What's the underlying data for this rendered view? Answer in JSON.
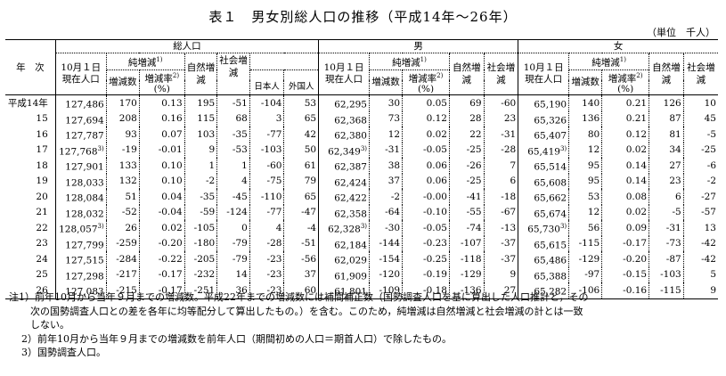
{
  "title": "表１　男女別総人口の推移（平成14年～26年）",
  "unit": "（単位　千人）",
  "header": {
    "year_col": "年　次",
    "total": "総人口",
    "male": "男",
    "female": "女",
    "pop_oct1": "10月１日現在人口",
    "net_change": "純増減",
    "net_change_note": "1)",
    "change_count": "増減数",
    "change_rate": "増減率",
    "change_rate_note": "2)",
    "change_rate_unit": "(%)",
    "natural": "自然増減",
    "social": "社会増減",
    "japanese": "日本人",
    "foreigner": "外国人"
  },
  "rows": [
    {
      "year": "平成14年",
      "t": "127,486",
      "tn": "",
      "tc": "170",
      "tr": "0.13",
      "tnat": "195",
      "ts": "-51",
      "tj": "-104",
      "tf": "53",
      "m": "62,295",
      "mn": "",
      "mc": "30",
      "mr": "0.05",
      "mnat": "69",
      "ms": "-60",
      "f": "65,190",
      "fn": "",
      "fc": "140",
      "fr": "0.21",
      "fnat": "126",
      "fs": "10"
    },
    {
      "year": "15",
      "t": "127,694",
      "tn": "",
      "tc": "208",
      "tr": "0.16",
      "tnat": "115",
      "ts": "68",
      "tj": "3",
      "tf": "65",
      "m": "62,368",
      "mn": "",
      "mc": "73",
      "mr": "0.12",
      "mnat": "28",
      "ms": "23",
      "f": "65,326",
      "fn": "",
      "fc": "136",
      "fr": "0.21",
      "fnat": "87",
      "fs": "45"
    },
    {
      "year": "16",
      "t": "127,787",
      "tn": "",
      "tc": "93",
      "tr": "0.07",
      "tnat": "103",
      "ts": "-35",
      "tj": "-77",
      "tf": "42",
      "m": "62,380",
      "mn": "",
      "mc": "12",
      "mr": "0.02",
      "mnat": "22",
      "ms": "-31",
      "f": "65,407",
      "fn": "",
      "fc": "80",
      "fr": "0.12",
      "fnat": "81",
      "fs": "-5"
    },
    {
      "year": "17",
      "t": "127,768",
      "tn": "3)",
      "tc": "-19",
      "tr": "-0.01",
      "tnat": "9",
      "ts": "-53",
      "tj": "-103",
      "tf": "50",
      "m": "62,349",
      "mn": "3)",
      "mc": "-31",
      "mr": "-0.05",
      "mnat": "-25",
      "ms": "-28",
      "f": "65,419",
      "fn": "3)",
      "fc": "12",
      "fr": "0.02",
      "fnat": "34",
      "fs": "-25"
    },
    {
      "year": "18",
      "t": "127,901",
      "tn": "",
      "tc": "133",
      "tr": "0.10",
      "tnat": "1",
      "ts": "1",
      "tj": "-60",
      "tf": "61",
      "m": "62,387",
      "mn": "",
      "mc": "38",
      "mr": "0.06",
      "mnat": "-26",
      "ms": "7",
      "f": "65,514",
      "fn": "",
      "fc": "95",
      "fr": "0.14",
      "fnat": "27",
      "fs": "-6"
    },
    {
      "year": "19",
      "t": "128,033",
      "tn": "",
      "tc": "132",
      "tr": "0.10",
      "tnat": "-2",
      "ts": "4",
      "tj": "-75",
      "tf": "79",
      "m": "62,424",
      "mn": "",
      "mc": "37",
      "mr": "0.06",
      "mnat": "-25",
      "ms": "6",
      "f": "65,608",
      "fn": "",
      "fc": "95",
      "fr": "0.14",
      "fnat": "23",
      "fs": "-2"
    },
    {
      "year": "20",
      "t": "128,084",
      "tn": "",
      "tc": "51",
      "tr": "0.04",
      "tnat": "-35",
      "ts": "-45",
      "tj": "-110",
      "tf": "65",
      "m": "62,422",
      "mn": "",
      "mc": "-2",
      "mr": "-0.00",
      "mnat": "-41",
      "ms": "-18",
      "f": "65,662",
      "fn": "",
      "fc": "53",
      "fr": "0.08",
      "fnat": "6",
      "fs": "-27"
    },
    {
      "year": "21",
      "t": "128,032",
      "tn": "",
      "tc": "-52",
      "tr": "-0.04",
      "tnat": "-59",
      "ts": "-124",
      "tj": "-77",
      "tf": "-47",
      "m": "62,358",
      "mn": "",
      "mc": "-64",
      "mr": "-0.10",
      "mnat": "-55",
      "ms": "-67",
      "f": "65,674",
      "fn": "",
      "fc": "12",
      "fr": "0.02",
      "fnat": "-5",
      "fs": "-57"
    },
    {
      "year": "22",
      "t": "128,057",
      "tn": "3)",
      "tc": "26",
      "tr": "0.02",
      "tnat": "-105",
      "ts": "0",
      "tj": "4",
      "tf": "-4",
      "m": "62,328",
      "mn": "3)",
      "mc": "-30",
      "mr": "-0.05",
      "mnat": "-74",
      "ms": "-13",
      "f": "65,730",
      "fn": "3)",
      "fc": "56",
      "fr": "0.09",
      "fnat": "-31",
      "fs": "13"
    },
    {
      "year": "23",
      "t": "127,799",
      "tn": "",
      "tc": "-259",
      "tr": "-0.20",
      "tnat": "-180",
      "ts": "-79",
      "tj": "-28",
      "tf": "-51",
      "m": "62,184",
      "mn": "",
      "mc": "-144",
      "mr": "-0.23",
      "mnat": "-107",
      "ms": "-37",
      "f": "65,615",
      "fn": "",
      "fc": "-115",
      "fr": "-0.17",
      "fnat": "-73",
      "fs": "-42"
    },
    {
      "year": "24",
      "t": "127,515",
      "tn": "",
      "tc": "-284",
      "tr": "-0.22",
      "tnat": "-205",
      "ts": "-79",
      "tj": "-23",
      "tf": "-56",
      "m": "62,029",
      "mn": "",
      "mc": "-154",
      "mr": "-0.25",
      "mnat": "-118",
      "ms": "-37",
      "f": "65,486",
      "fn": "",
      "fc": "-129",
      "fr": "-0.20",
      "fnat": "-87",
      "fs": "-42"
    },
    {
      "year": "25",
      "t": "127,298",
      "tn": "",
      "tc": "-217",
      "tr": "-0.17",
      "tnat": "-232",
      "ts": "14",
      "tj": "-23",
      "tf": "37",
      "m": "61,909",
      "mn": "",
      "mc": "-120",
      "mr": "-0.19",
      "mnat": "-129",
      "ms": "9",
      "f": "65,388",
      "fn": "",
      "fc": "-97",
      "fr": "-0.15",
      "fnat": "-103",
      "fs": "5"
    },
    {
      "year": "26",
      "t": "127,083",
      "tn": "",
      "tc": "-215",
      "tr": "-0.17",
      "tnat": "-251",
      "ts": "36",
      "tj": "-23",
      "tf": "60",
      "m": "61,801",
      "mn": "",
      "mc": "-109",
      "mr": "-0.18",
      "mnat": "-136",
      "ms": "27",
      "f": "65,282",
      "fn": "",
      "fc": "-106",
      "fr": "-0.16",
      "fnat": "-115",
      "fs": "9"
    }
  ],
  "notes": {
    "n1_label": "注1）",
    "n1_text": "前年10月から当年９月までの増減数。平成22年までの増減数には補間補正数（国勢調査人口を基に算出した人口推計と，その",
    "n1_text2": "次の国勢調査人口との差を各年に均等配分して算出したもの。）を含む。このため，純増減は自然増減と社会増減の計とは一致",
    "n1_text3": "しない。",
    "n2": "2）前年10月から当年９月までの増減数を前年人口（期間初めの人口＝期首人口）で除したもの。",
    "n3": "3）国勢調査人口。"
  }
}
